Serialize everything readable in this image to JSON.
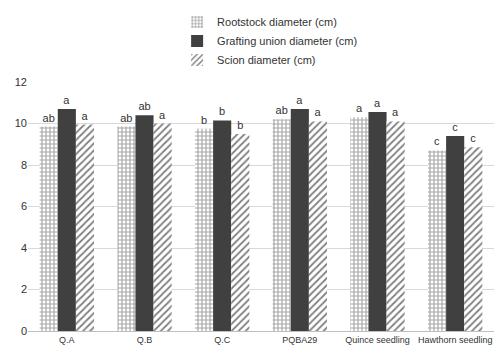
{
  "chart_data": {
    "type": "bar",
    "categories": [
      "Q.A",
      "Q.B",
      "Q.C",
      "PQBA29",
      "Quince seedling",
      "Hawthorn seedling"
    ],
    "series": [
      {
        "name": "Rootstock diameter (cm)",
        "color": "#a6a6a6",
        "values": [
          9.85,
          9.85,
          9.75,
          10.2,
          10.3,
          8.7
        ],
        "letters": [
          "ab",
          "ab",
          "b",
          "ab",
          "a",
          "c"
        ]
      },
      {
        "name": "Grafting union diameter (cm)",
        "color": "#404040",
        "values": [
          10.7,
          10.4,
          10.15,
          10.7,
          10.55,
          9.4
        ],
        "letters": [
          "a",
          "ab",
          "b",
          "a",
          "a",
          "c"
        ]
      },
      {
        "name": "Scion diameter (cm)",
        "color": "#808080",
        "values": [
          9.95,
          10.0,
          9.5,
          10.1,
          10.1,
          8.85
        ],
        "letters": [
          "a",
          "a",
          "b",
          "a",
          "a",
          "c"
        ]
      }
    ],
    "ylim": [
      0,
      12
    ],
    "yticks": [
      0,
      2,
      4,
      6,
      8,
      10,
      12
    ],
    "grid": true,
    "legend": "top"
  }
}
